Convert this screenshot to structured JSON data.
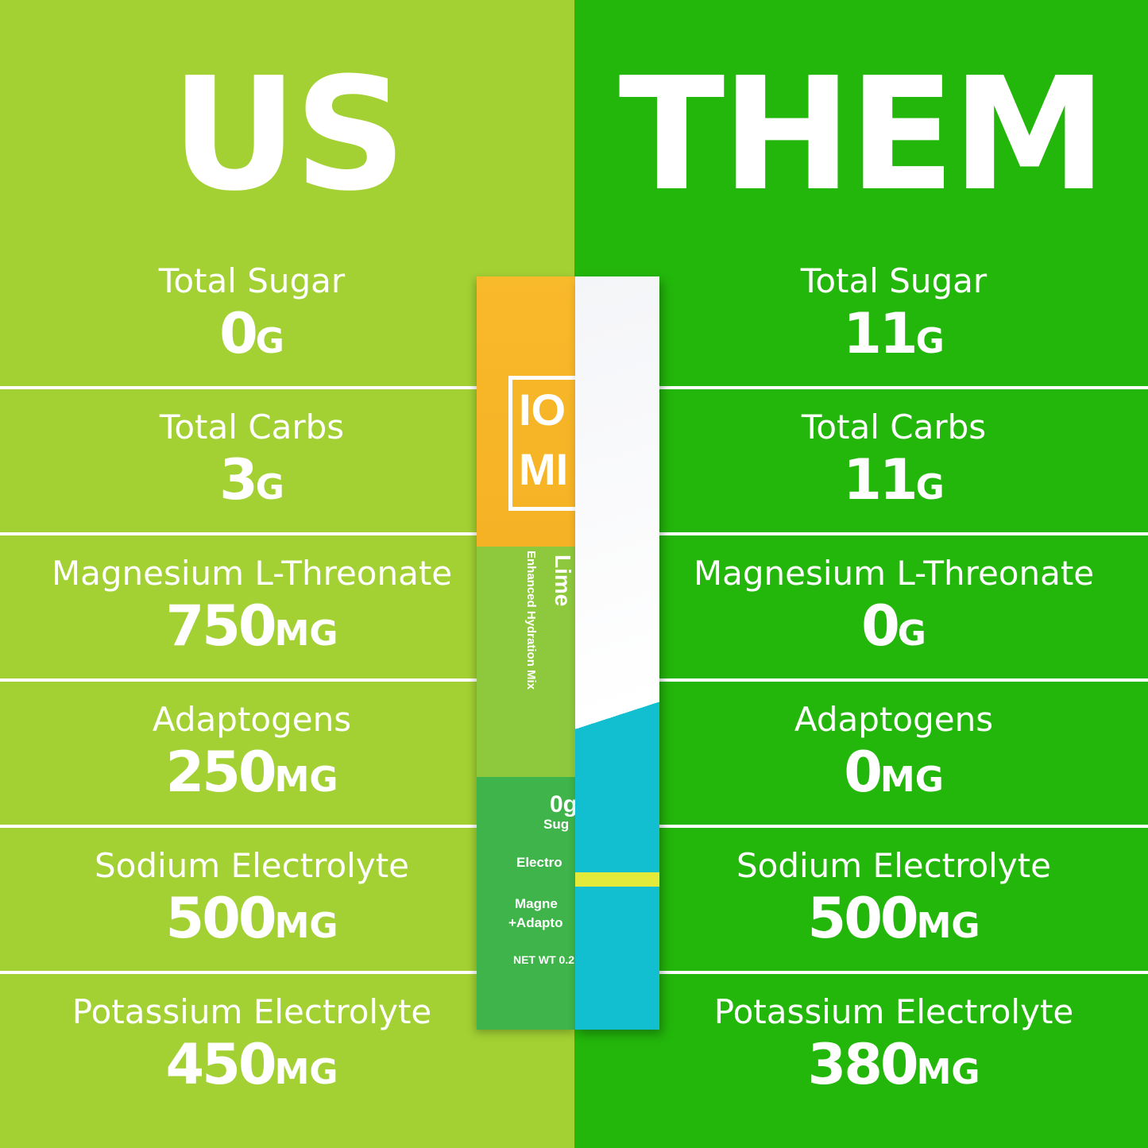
{
  "left": {
    "title": "US",
    "rows": [
      {
        "label": "Total Sugar",
        "value": "0",
        "unit": "G"
      },
      {
        "label": "Total Carbs",
        "value": "3",
        "unit": "G"
      },
      {
        "label": "Magnesium L-Threonate",
        "value": "750",
        "unit": "MG"
      },
      {
        "label": "Adaptogens",
        "value": "250",
        "unit": "MG"
      },
      {
        "label": "Sodium Electrolyte",
        "value": "500",
        "unit": "MG"
      },
      {
        "label": "Potassium Electrolyte",
        "value": "450",
        "unit": "MG"
      }
    ]
  },
  "right": {
    "title": "THEM",
    "rows": [
      {
        "label": "Total Sugar",
        "value": "11",
        "unit": "G"
      },
      {
        "label": "Total Carbs",
        "value": "11",
        "unit": "G"
      },
      {
        "label": "Magnesium L-Threonate",
        "value": "0",
        "unit": "G"
      },
      {
        "label": "Adaptogens",
        "value": "0",
        "unit": "MG"
      },
      {
        "label": "Sodium Electrolyte",
        "value": "500",
        "unit": "MG"
      },
      {
        "label": "Potassium Electrolyte",
        "value": "380",
        "unit": "MG"
      }
    ]
  },
  "packet": {
    "logo_top": "IO",
    "logo_bottom": "MI",
    "flavor": "Lime",
    "subtitle": "Enhanced Hydration Mix",
    "sugar_value": "0g",
    "sugar_label": "Sug",
    "line1": "Electro",
    "line2a": "Magne",
    "line2b": "+Adapto",
    "net_wt": "NET WT 0.2"
  },
  "colors": {
    "left_bg": "#a3d133",
    "right_bg": "#23b70b"
  }
}
